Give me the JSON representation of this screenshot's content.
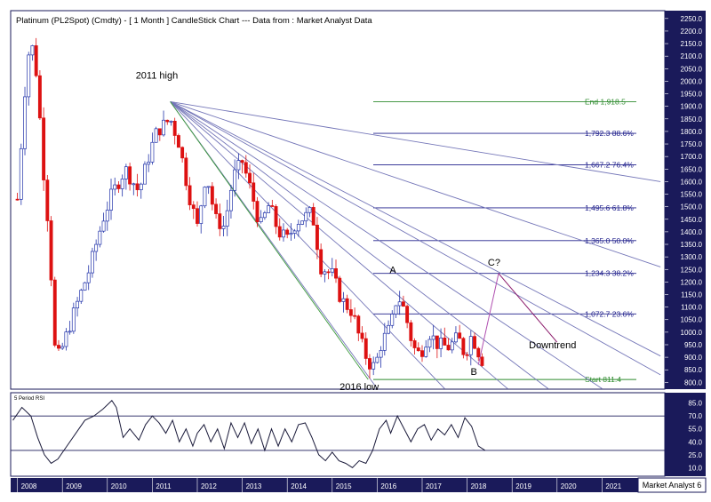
{
  "chart_data": {
    "type": "candlestick",
    "title": "Platinum (PL2Spot) (Cmdty) -  [ 1 Month ] CandleStick Chart --- Data from : Market Analyst Data",
    "watermark": "Market Analyst 6",
    "x_tick_labels": [
      "2008",
      "2009",
      "2010",
      "2011",
      "2012",
      "2013",
      "2014",
      "2015",
      "2016",
      "2017",
      "2018",
      "2019",
      "2020",
      "2021"
    ],
    "price_axis": {
      "ylim": [
        780,
        2260
      ],
      "tick_labels": [
        "2250.0",
        "2200.0",
        "2150.0",
        "2100.0",
        "2050.0",
        "2000.0",
        "1950.0",
        "1900.0",
        "1850.0",
        "1800.0",
        "1750.0",
        "1700.0",
        "1650.0",
        "1600.0",
        "1550.0",
        "1500.0",
        "1450.0",
        "1400.0",
        "1350.0",
        "1300.0",
        "1250.0",
        "1200.0",
        "1150.0",
        "1100.0",
        "1050.0",
        "1000.0",
        "950.0",
        "900.0",
        "850.0",
        "800.0"
      ]
    },
    "fib_levels": [
      {
        "label": "End 1,918.5",
        "value": 1918.5,
        "color": "#2e8b2e"
      },
      {
        "label": "1,792.3 88.6%",
        "value": 1792.3,
        "color": "#20208c"
      },
      {
        "label": "1,667.2 76.4%",
        "value": 1667.2,
        "color": "#20208c"
      },
      {
        "label": "1,495.6 61.8%",
        "value": 1495.6,
        "color": "#20208c"
      },
      {
        "label": "1,365.0 50.0%",
        "value": 1365.0,
        "color": "#20208c"
      },
      {
        "label": "1,234.3 38.2%",
        "value": 1234.3,
        "color": "#20208c"
      },
      {
        "label": "1,072.7 23.6%",
        "value": 1072.7,
        "color": "#20208c"
      },
      {
        "label": "Start 811.4",
        "value": 811.4,
        "color": "#2e8b2e"
      }
    ],
    "annotations": [
      {
        "text": "2011 high",
        "year": 2011.1,
        "price": 2010
      },
      {
        "text": "2016 low",
        "year": 2015.6,
        "price": 770
      },
      {
        "text": "A",
        "year": 2016.35,
        "price": 1235
      },
      {
        "text": "B",
        "year": 2018.15,
        "price": 830
      },
      {
        "text": "C?",
        "year": 2018.6,
        "price": 1265
      },
      {
        "text": "Downtrend",
        "year": 2019.9,
        "price": 935
      }
    ],
    "fan_origin": {
      "year": 2011.4,
      "price": 1918.5
    },
    "fan_lines_end": [
      {
        "year": 2022.3,
        "price": 1600
      },
      {
        "year": 2022.3,
        "price": 1260
      },
      {
        "year": 2022.3,
        "price": 905
      },
      {
        "year": 2022.3,
        "price": 830
      },
      {
        "year": 2021.0,
        "price": 775
      },
      {
        "year": 2019.8,
        "price": 775
      },
      {
        "year": 2018.9,
        "price": 775
      },
      {
        "year": 2017.5,
        "price": 775
      },
      {
        "year": 2016.0,
        "price": 775
      }
    ],
    "fan_color": "#7476b8",
    "fan_green_line": {
      "end_year": 2015.8,
      "end_price": 811.4,
      "color": "#3c9a3c"
    },
    "projection": {
      "points": [
        {
          "year": 2018.25,
          "price": 870
        },
        {
          "year": 2018.7,
          "price": 1234
        }
      ],
      "color": "#b050b0"
    },
    "downtrend": {
      "points": [
        {
          "year": 2018.7,
          "price": 1234
        },
        {
          "year": 2020.0,
          "price": 960
        }
      ],
      "color": "#8b1a6b"
    },
    "candles_monthly_close_anchor_points": [
      {
        "year": 2008.0,
        "price": 1530
      },
      {
        "year": 2008.2,
        "price": 2050
      },
      {
        "year": 2008.3,
        "price": 2170
      },
      {
        "year": 2008.45,
        "price": 2000
      },
      {
        "year": 2008.55,
        "price": 1700
      },
      {
        "year": 2008.7,
        "price": 1400
      },
      {
        "year": 2008.85,
        "price": 880
      },
      {
        "year": 2009.0,
        "price": 940
      },
      {
        "year": 2009.3,
        "price": 1100
      },
      {
        "year": 2009.6,
        "price": 1250
      },
      {
        "year": 2009.9,
        "price": 1450
      },
      {
        "year": 2010.1,
        "price": 1550
      },
      {
        "year": 2010.4,
        "price": 1650
      },
      {
        "year": 2010.7,
        "price": 1560
      },
      {
        "year": 2010.95,
        "price": 1720
      },
      {
        "year": 2011.1,
        "price": 1800
      },
      {
        "year": 2011.4,
        "price": 1850
      },
      {
        "year": 2011.6,
        "price": 1750
      },
      {
        "year": 2011.8,
        "price": 1560
      },
      {
        "year": 2012.0,
        "price": 1420
      },
      {
        "year": 2012.2,
        "price": 1640
      },
      {
        "year": 2012.4,
        "price": 1450
      },
      {
        "year": 2012.6,
        "price": 1420
      },
      {
        "year": 2012.8,
        "price": 1620
      },
      {
        "year": 2013.0,
        "price": 1680
      },
      {
        "year": 2013.2,
        "price": 1560
      },
      {
        "year": 2013.4,
        "price": 1420
      },
      {
        "year": 2013.6,
        "price": 1510
      },
      {
        "year": 2013.8,
        "price": 1400
      },
      {
        "year": 2014.0,
        "price": 1370
      },
      {
        "year": 2014.2,
        "price": 1440
      },
      {
        "year": 2014.4,
        "price": 1460
      },
      {
        "year": 2014.55,
        "price": 1480
      },
      {
        "year": 2014.75,
        "price": 1260
      },
      {
        "year": 2015.0,
        "price": 1230
      },
      {
        "year": 2015.2,
        "price": 1130
      },
      {
        "year": 2015.45,
        "price": 1080
      },
      {
        "year": 2015.6,
        "price": 980
      },
      {
        "year": 2015.8,
        "price": 880
      },
      {
        "year": 2015.95,
        "price": 860
      },
      {
        "year": 2016.1,
        "price": 960
      },
      {
        "year": 2016.3,
        "price": 1020
      },
      {
        "year": 2016.45,
        "price": 1150
      },
      {
        "year": 2016.6,
        "price": 1090
      },
      {
        "year": 2016.8,
        "price": 940
      },
      {
        "year": 2016.95,
        "price": 910
      },
      {
        "year": 2017.15,
        "price": 1000
      },
      {
        "year": 2017.35,
        "price": 950
      },
      {
        "year": 2017.6,
        "price": 940
      },
      {
        "year": 2017.8,
        "price": 980
      },
      {
        "year": 2017.95,
        "price": 910
      },
      {
        "year": 2018.1,
        "price": 990
      },
      {
        "year": 2018.3,
        "price": 900
      },
      {
        "year": 2018.4,
        "price": 870
      }
    ],
    "rsi": {
      "label": "5 Period RSI",
      "ylim": [
        0,
        95
      ],
      "tick_labels": [
        "85.0",
        "70.0",
        "55.0",
        "40.0",
        "25.0",
        "10.0"
      ],
      "tick_values": [
        85,
        70,
        55,
        40,
        25,
        10
      ],
      "guide_levels": [
        70,
        30
      ],
      "points": [
        {
          "year": 2007.9,
          "value": 65
        },
        {
          "year": 2008.1,
          "value": 80
        },
        {
          "year": 2008.3,
          "value": 70
        },
        {
          "year": 2008.45,
          "value": 45
        },
        {
          "year": 2008.6,
          "value": 25
        },
        {
          "year": 2008.75,
          "value": 15
        },
        {
          "year": 2008.9,
          "value": 20
        },
        {
          "year": 2009.1,
          "value": 35
        },
        {
          "year": 2009.3,
          "value": 50
        },
        {
          "year": 2009.5,
          "value": 65
        },
        {
          "year": 2009.7,
          "value": 70
        },
        {
          "year": 2009.9,
          "value": 78
        },
        {
          "year": 2010.1,
          "value": 88
        },
        {
          "year": 2010.2,
          "value": 80
        },
        {
          "year": 2010.35,
          "value": 45
        },
        {
          "year": 2010.5,
          "value": 55
        },
        {
          "year": 2010.7,
          "value": 42
        },
        {
          "year": 2010.85,
          "value": 60
        },
        {
          "year": 2011.0,
          "value": 70
        },
        {
          "year": 2011.15,
          "value": 62
        },
        {
          "year": 2011.3,
          "value": 50
        },
        {
          "year": 2011.45,
          "value": 65
        },
        {
          "year": 2011.6,
          "value": 40
        },
        {
          "year": 2011.75,
          "value": 55
        },
        {
          "year": 2011.9,
          "value": 35
        },
        {
          "year": 2012.0,
          "value": 50
        },
        {
          "year": 2012.15,
          "value": 60
        },
        {
          "year": 2012.3,
          "value": 40
        },
        {
          "year": 2012.45,
          "value": 55
        },
        {
          "year": 2012.6,
          "value": 32
        },
        {
          "year": 2012.75,
          "value": 62
        },
        {
          "year": 2012.9,
          "value": 45
        },
        {
          "year": 2013.05,
          "value": 62
        },
        {
          "year": 2013.2,
          "value": 38
        },
        {
          "year": 2013.35,
          "value": 55
        },
        {
          "year": 2013.5,
          "value": 30
        },
        {
          "year": 2013.65,
          "value": 55
        },
        {
          "year": 2013.8,
          "value": 35
        },
        {
          "year": 2013.95,
          "value": 55
        },
        {
          "year": 2014.1,
          "value": 40
        },
        {
          "year": 2014.25,
          "value": 60
        },
        {
          "year": 2014.4,
          "value": 62
        },
        {
          "year": 2014.55,
          "value": 45
        },
        {
          "year": 2014.7,
          "value": 25
        },
        {
          "year": 2014.85,
          "value": 18
        },
        {
          "year": 2015.0,
          "value": 28
        },
        {
          "year": 2015.15,
          "value": 18
        },
        {
          "year": 2015.3,
          "value": 15
        },
        {
          "year": 2015.45,
          "value": 10
        },
        {
          "year": 2015.6,
          "value": 18
        },
        {
          "year": 2015.75,
          "value": 15
        },
        {
          "year": 2015.9,
          "value": 30
        },
        {
          "year": 2016.05,
          "value": 55
        },
        {
          "year": 2016.2,
          "value": 65
        },
        {
          "year": 2016.3,
          "value": 50
        },
        {
          "year": 2016.45,
          "value": 70
        },
        {
          "year": 2016.6,
          "value": 55
        },
        {
          "year": 2016.75,
          "value": 40
        },
        {
          "year": 2016.9,
          "value": 55
        },
        {
          "year": 2017.05,
          "value": 60
        },
        {
          "year": 2017.2,
          "value": 42
        },
        {
          "year": 2017.35,
          "value": 55
        },
        {
          "year": 2017.5,
          "value": 48
        },
        {
          "year": 2017.65,
          "value": 60
        },
        {
          "year": 2017.8,
          "value": 45
        },
        {
          "year": 2017.95,
          "value": 68
        },
        {
          "year": 2018.1,
          "value": 58
        },
        {
          "year": 2018.25,
          "value": 35
        },
        {
          "year": 2018.4,
          "value": 30
        }
      ]
    }
  }
}
